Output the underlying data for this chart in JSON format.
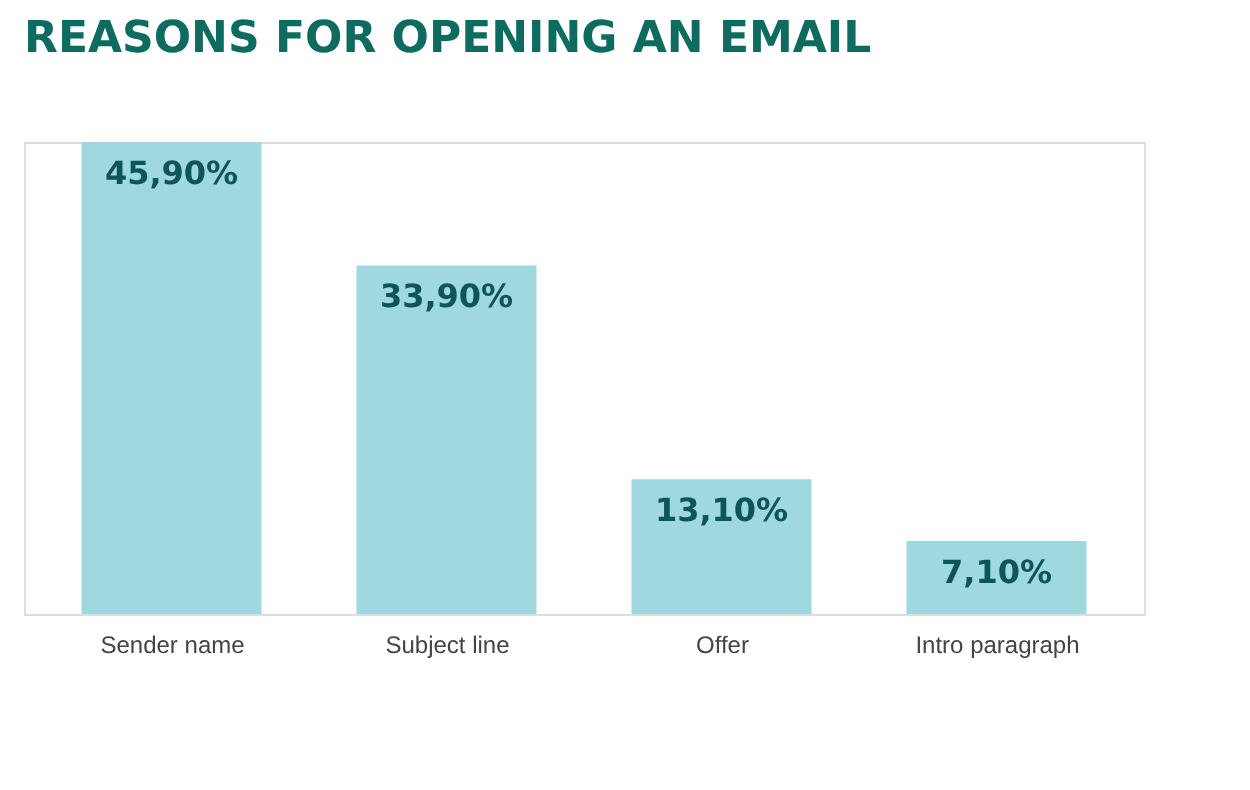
{
  "chart_data": {
    "type": "bar",
    "title": "REASONS FOR OPENING AN EMAIL",
    "categories": [
      "Sender name",
      "Subject line",
      "Offer",
      "Intro paragraph"
    ],
    "values": [
      45.9,
      33.9,
      13.1,
      7.1
    ],
    "value_labels": [
      "45,90%",
      "33,90%",
      "13,10%",
      "7,10%"
    ],
    "color": "#a0d8df",
    "tick_labels": "x"
  }
}
